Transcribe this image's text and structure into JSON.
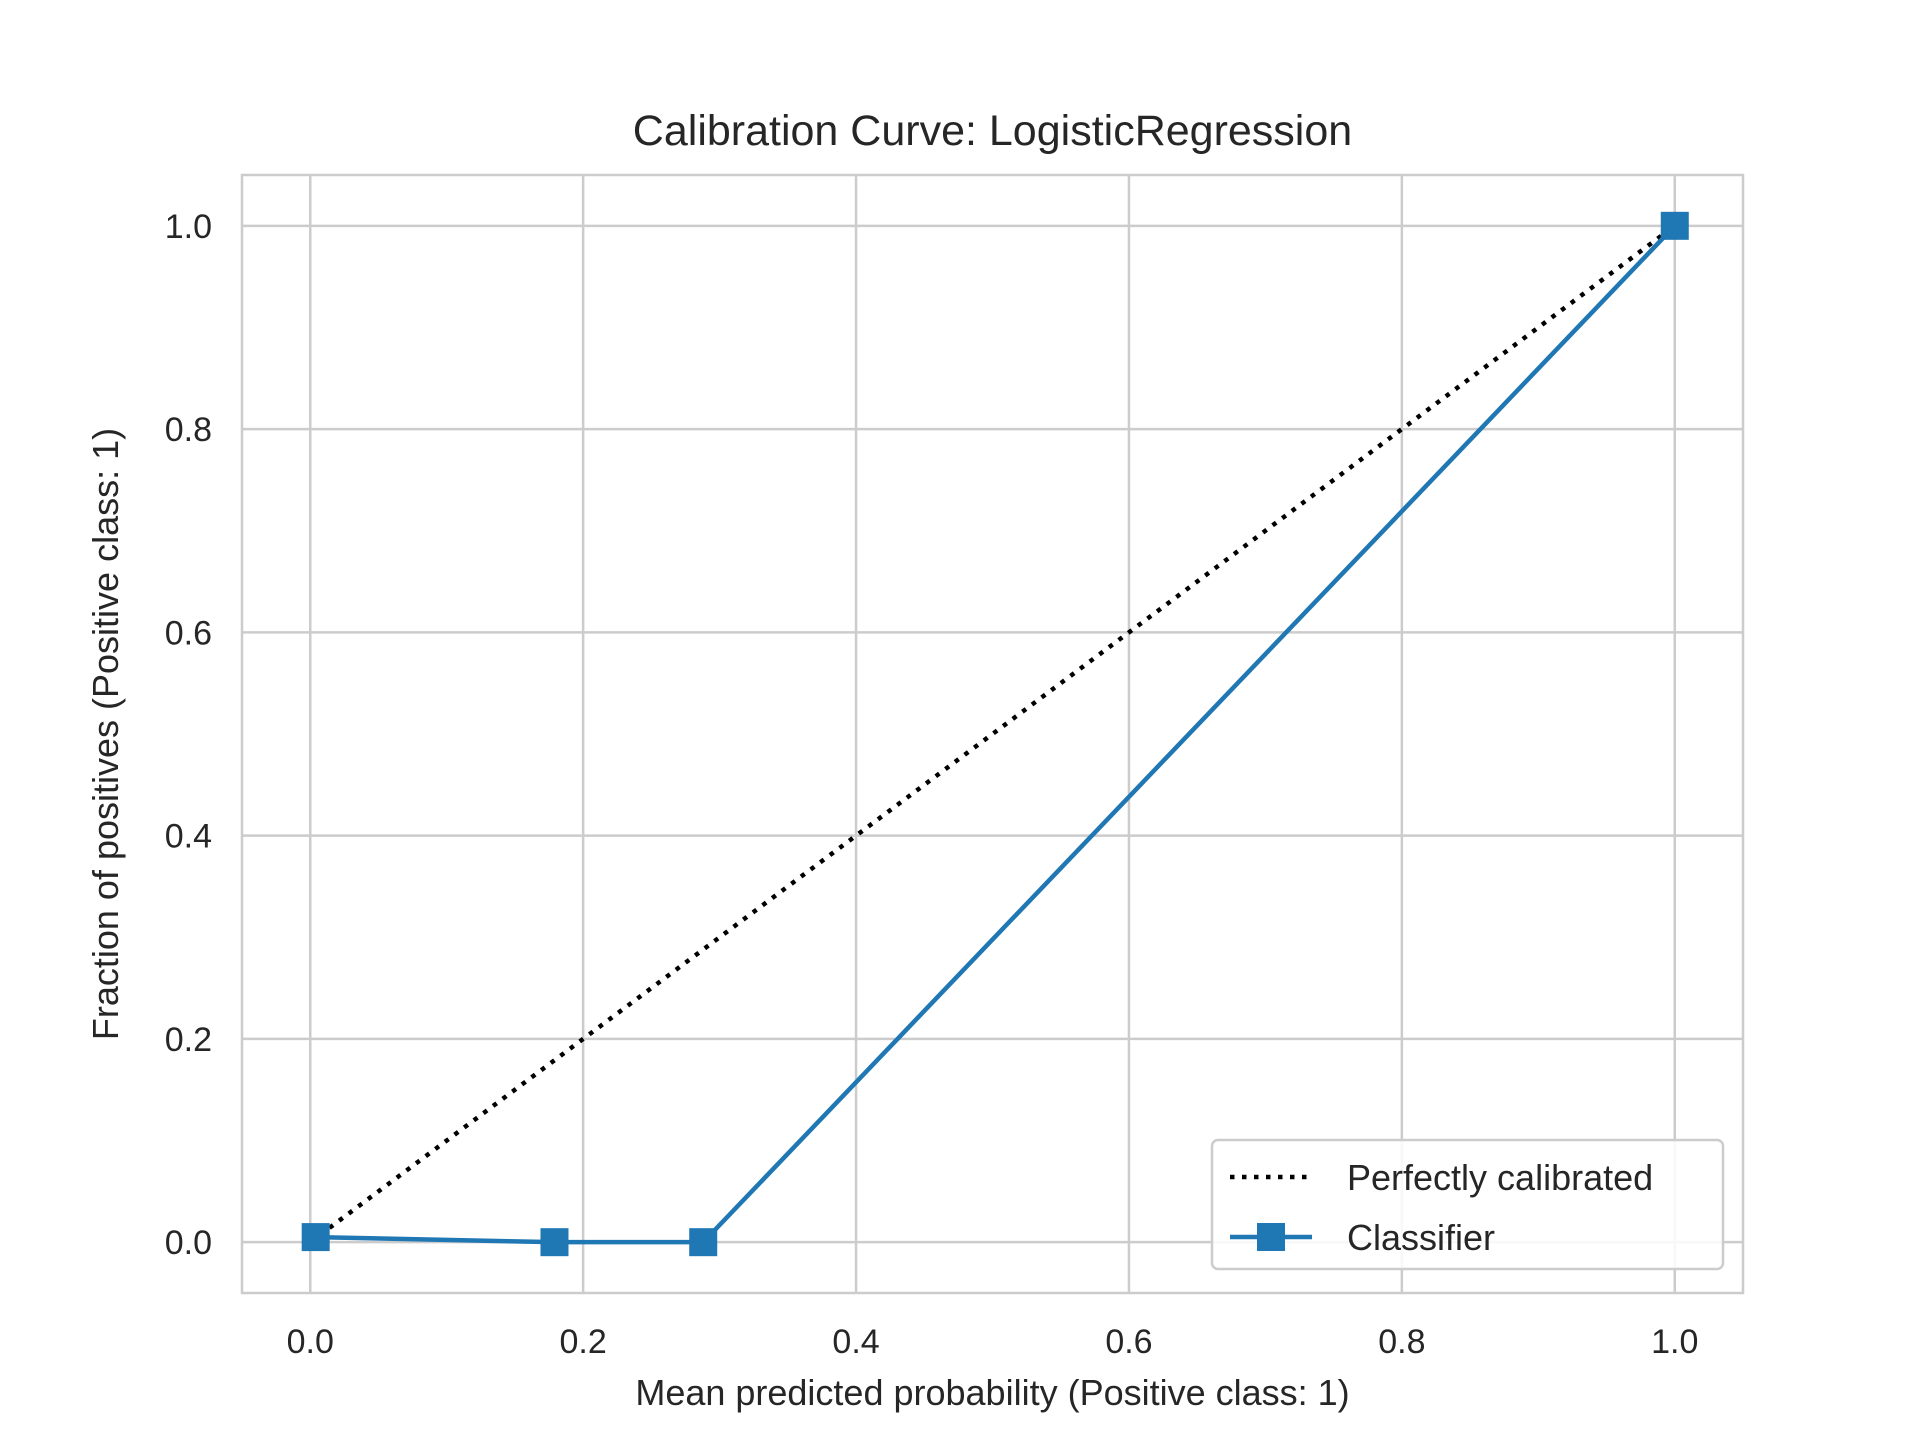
{
  "chart_data": {
    "type": "line",
    "title": "Calibration Curve: LogisticRegression",
    "xlabel": "Mean predicted probability (Positive class: 1)",
    "ylabel": "Fraction of positives (Positive class: 1)",
    "xlim": [
      -0.05,
      1.05
    ],
    "ylim": [
      -0.05,
      1.05
    ],
    "xticks": [
      0.0,
      0.2,
      0.4,
      0.6,
      0.8,
      1.0
    ],
    "yticks": [
      0.0,
      0.2,
      0.4,
      0.6,
      0.8,
      1.0
    ],
    "xtick_labels": [
      "0.0",
      "0.2",
      "0.4",
      "0.6",
      "0.8",
      "1.0"
    ],
    "ytick_labels": [
      "0.0",
      "0.2",
      "0.4",
      "0.6",
      "0.8",
      "1.0"
    ],
    "grid": true,
    "legend_position": "lower-right",
    "series": [
      {
        "name": "Perfectly calibrated",
        "style": "dotted",
        "color": "#000000",
        "x": [
          0.0,
          1.0
        ],
        "y": [
          0.0,
          1.0
        ]
      },
      {
        "name": "Classifier",
        "style": "solid",
        "marker": "square",
        "color": "#1f77b4",
        "x": [
          0.004,
          0.179,
          0.288,
          1.0
        ],
        "y": [
          0.005,
          0.0,
          0.0,
          1.0
        ]
      }
    ]
  }
}
